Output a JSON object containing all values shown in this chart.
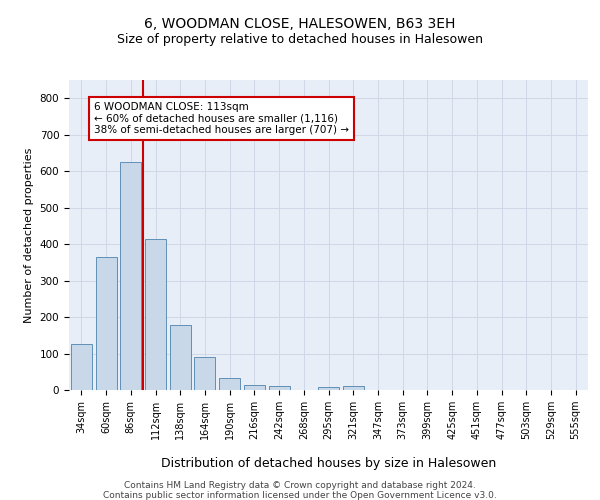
{
  "title1": "6, WOODMAN CLOSE, HALESOWEN, B63 3EH",
  "title2": "Size of property relative to detached houses in Halesowen",
  "xlabel": "Distribution of detached houses by size in Halesowen",
  "ylabel": "Number of detached properties",
  "categories": [
    "34sqm",
    "60sqm",
    "86sqm",
    "112sqm",
    "138sqm",
    "164sqm",
    "190sqm",
    "216sqm",
    "242sqm",
    "268sqm",
    "295sqm",
    "321sqm",
    "347sqm",
    "373sqm",
    "399sqm",
    "425sqm",
    "451sqm",
    "477sqm",
    "503sqm",
    "529sqm",
    "555sqm"
  ],
  "values": [
    125,
    365,
    625,
    415,
    178,
    90,
    32,
    15,
    10,
    0,
    8,
    10,
    0,
    0,
    0,
    0,
    0,
    0,
    0,
    0,
    0
  ],
  "bar_color": "#c8d8e8",
  "bar_edge_color": "#6090b8",
  "annotation_box_text": "6 WOODMAN CLOSE: 113sqm\n← 60% of detached houses are smaller (1,116)\n38% of semi-detached houses are larger (707) →",
  "annotation_box_color": "#ffffff",
  "annotation_box_edge_color": "#cc0000",
  "vline_color": "#cc0000",
  "footer1": "Contains HM Land Registry data © Crown copyright and database right 2024.",
  "footer2": "Contains public sector information licensed under the Open Government Licence v3.0.",
  "ylim": [
    0,
    850
  ],
  "yticks": [
    0,
    100,
    200,
    300,
    400,
    500,
    600,
    700,
    800
  ],
  "grid_color": "#d0d8e8",
  "bg_color": "#e8eef8",
  "title1_fontsize": 10,
  "title2_fontsize": 9,
  "ylabel_fontsize": 8,
  "xlabel_fontsize": 9,
  "tick_fontsize": 7,
  "footer_fontsize": 6.5,
  "ann_fontsize": 7.5,
  "vline_x": 2.5
}
